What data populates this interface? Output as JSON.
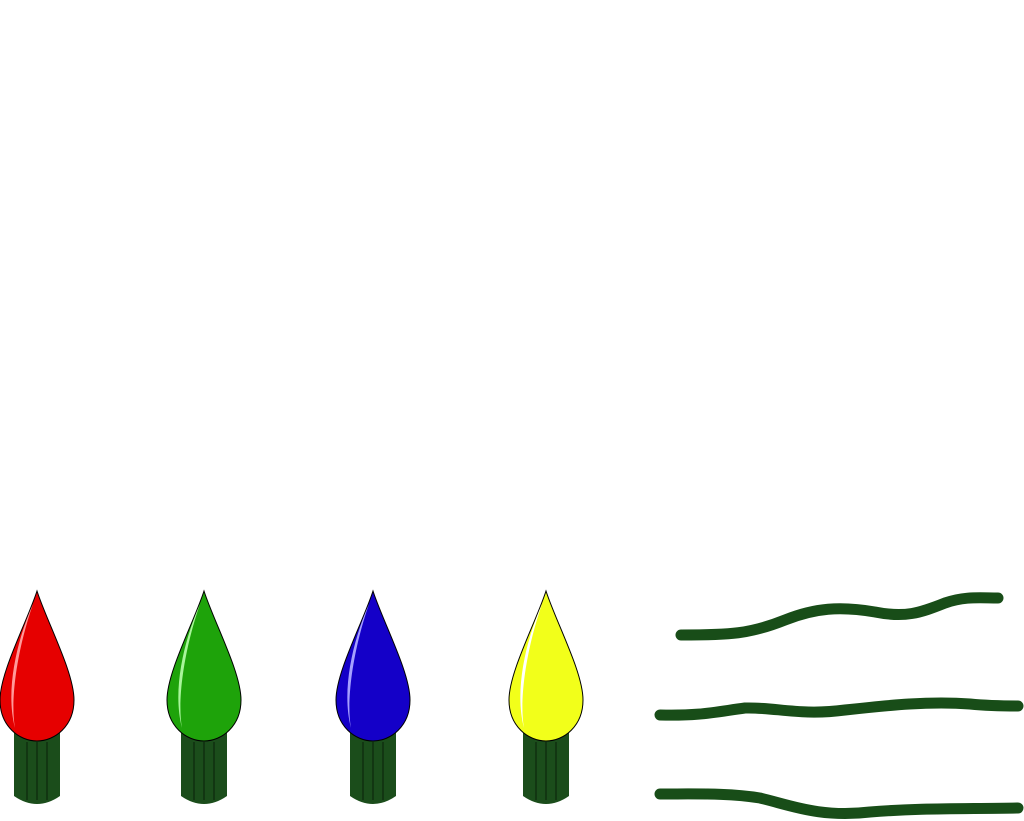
{
  "palette": {
    "background": "#ffffff",
    "socket": "#1b4d1b",
    "socket_line": "#0f2f0f",
    "wire": "#184d18"
  },
  "bulbs": [
    {
      "name": "red-bulb",
      "color": "#e60000",
      "shine": "#ff9a9a"
    },
    {
      "name": "green-bulb",
      "color": "#1ea30a",
      "shine": "#a9f59b"
    },
    {
      "name": "blue-bulb",
      "color": "#1400c8",
      "shine": "#a6a0ff"
    },
    {
      "name": "yellow-bulb",
      "color": "#f2ff1a",
      "shine": "#ffffff"
    }
  ],
  "wires": [
    {
      "name": "wire-top"
    },
    {
      "name": "wire-middle"
    },
    {
      "name": "wire-bottom"
    }
  ]
}
